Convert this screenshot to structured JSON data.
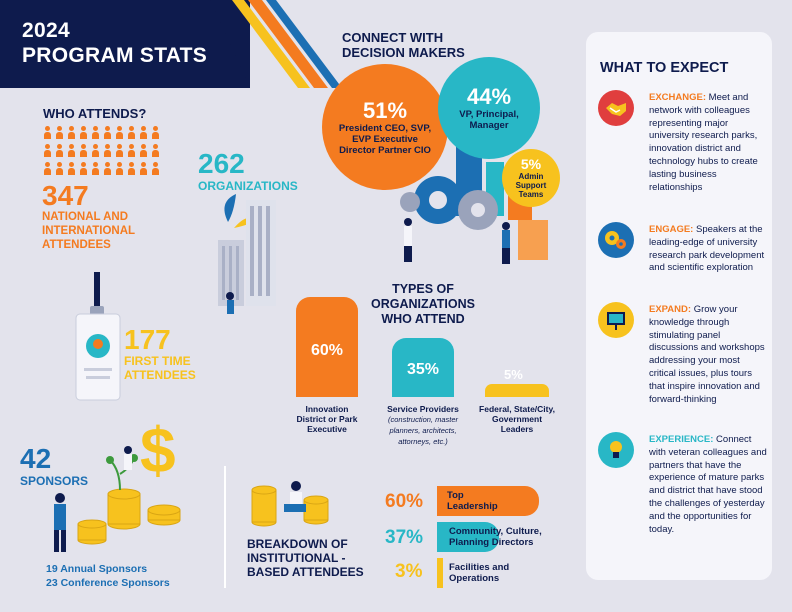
{
  "header": {
    "title_line1": "2024",
    "title_line2": "PROGRAM STATS"
  },
  "who": {
    "title": "WHO ATTENDS?",
    "count": "347",
    "label": "NATIONAL AND INTERNATIONAL ATTENDEES"
  },
  "orgs": {
    "count": "262",
    "label": "ORGANIZATIONS"
  },
  "first_time": {
    "count": "177",
    "label": "FIRST TIME ATTENDEES"
  },
  "sponsors": {
    "count": "42",
    "label": "SPONSORS",
    "annual": "19 Annual Sponsors",
    "conference": "23 Conference Sponsors"
  },
  "connect": {
    "title": "CONNECT WITH DECISION MAKERS",
    "bubbles": [
      {
        "pct": "51%",
        "text": "President CEO, SVP, EVP Executive Director Partner CIO"
      },
      {
        "pct": "44%",
        "text": "VP, Principal, Manager"
      },
      {
        "pct": "5%",
        "text": "Admin Support Teams"
      }
    ]
  },
  "types": {
    "title": "TYPES OF ORGANIZATIONS WHO ATTEND",
    "bars": [
      {
        "pct": "60%",
        "label": "Innovation District or Park Executive",
        "value": 60
      },
      {
        "pct": "35%",
        "label": "Service Providers",
        "note": "(construction, master planners, architects, attorneys, etc.)",
        "value": 35
      },
      {
        "pct": "5%",
        "label": "Federal, State/City, Government Leaders",
        "value": 5
      }
    ]
  },
  "breakdown": {
    "title": "BREAKDOWN OF INSTITUTIONAL -BASED ATTENDEES",
    "items": [
      {
        "pct": "60%",
        "label": "Top Leadership",
        "value": 60
      },
      {
        "pct": "37%",
        "label": "Community, Culture, Planning Directors",
        "value": 37
      },
      {
        "pct": "3%",
        "label": "Facilities and Operations",
        "value": 3
      }
    ]
  },
  "expect": {
    "title": "WHAT TO EXPECT",
    "items": [
      {
        "head": "EXCHANGE:",
        "text": "Meet and network with colleagues representing major university research parks, innovation district and technology hubs to create lasting business relationships",
        "icon": "handshake-icon"
      },
      {
        "head": "ENGAGE:",
        "text": "Speakers at the leading-edge of university research park development and scientific exploration",
        "icon": "gears-icon"
      },
      {
        "head": "EXPAND:",
        "text": "Grow your knowledge through stimulating panel discussions and workshops addressing your most critical issues, plus tours that inspire innovation and forward-thinking",
        "icon": "presentation-icon"
      },
      {
        "head": "EXPERIENCE:",
        "text": "Connect with veteran colleagues and partners that have the experience of mature parks and district that have stood the challenges of yesterday and the opportunities for today.",
        "icon": "lightbulb-icon"
      }
    ]
  },
  "colors": {
    "navy": "#0e1b4d",
    "orange": "#f47b20",
    "teal": "#28b7c6",
    "yellow": "#f7c21e",
    "blue": "#1c6fb3"
  }
}
